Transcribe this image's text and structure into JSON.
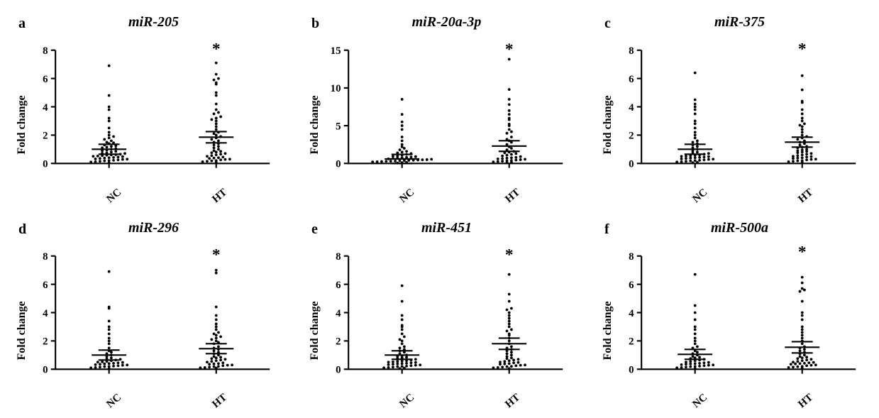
{
  "figure": {
    "background_color": "#ffffff",
    "text_color": "#000000",
    "font_family": "Times New Roman",
    "panel_label_fontsize": 20,
    "title_fontsize": 20,
    "ylabel_fontsize": 16,
    "tick_fontsize": 14,
    "xtick_fontsize": 15,
    "marker_color": "#000000",
    "marker_radius": 1.8,
    "axis_stroke": "#000000",
    "axis_width": 2,
    "tick_len": 6,
    "errorbar_width": 2,
    "errorbar_cap": 14,
    "mean_bar_width": 46,
    "xtick_rotation_deg": -40,
    "ylabel": "Fold change",
    "categories": [
      "NC",
      "HT"
    ],
    "star_symbol": "*",
    "panels": [
      {
        "label": "a",
        "title": "miR-205",
        "ylim": [
          0,
          8
        ],
        "ytick_step": 2,
        "star_on": 1,
        "star_y": 7.7,
        "groups": [
          {
            "mean": 1.0,
            "sem": 0.35,
            "points": [
              0.05,
              0.1,
              0.12,
              0.15,
              0.18,
              0.2,
              0.22,
              0.25,
              0.28,
              0.3,
              0.32,
              0.35,
              0.38,
              0.4,
              0.42,
              0.45,
              0.48,
              0.5,
              0.52,
              0.55,
              0.58,
              0.6,
              0.62,
              0.65,
              0.7,
              0.72,
              0.75,
              0.8,
              0.85,
              0.9,
              0.95,
              1.0,
              1.05,
              1.1,
              1.15,
              1.2,
              1.25,
              1.3,
              1.4,
              1.45,
              1.5,
              1.6,
              1.7,
              1.8,
              1.9,
              2.0,
              2.2,
              2.5,
              3.0,
              3.2,
              3.8,
              4.0,
              4.8,
              6.9
            ]
          },
          {
            "mean": 1.85,
            "sem": 0.4,
            "points": [
              0.08,
              0.12,
              0.15,
              0.18,
              0.2,
              0.25,
              0.28,
              0.3,
              0.35,
              0.38,
              0.4,
              0.45,
              0.5,
              0.55,
              0.6,
              0.65,
              0.7,
              0.75,
              0.8,
              0.85,
              0.9,
              1.0,
              1.1,
              1.2,
              1.3,
              1.4,
              1.5,
              1.6,
              1.7,
              1.8,
              1.9,
              2.0,
              2.1,
              2.2,
              2.4,
              2.6,
              2.8,
              3.0,
              3.1,
              3.2,
              3.3,
              3.5,
              3.6,
              3.8,
              4.2,
              4.8,
              5.0,
              5.6,
              5.7,
              5.9,
              6.0,
              6.3,
              7.1
            ]
          }
        ]
      },
      {
        "label": "b",
        "title": "miR-20a-3p",
        "ylim": [
          0,
          15
        ],
        "ytick_step": 5,
        "star_on": 1,
        "star_y": 14.4,
        "groups": [
          {
            "mean": 0.6,
            "sem": 0.6,
            "points": [
              0.05,
              0.1,
              0.15,
              0.2,
              0.22,
              0.25,
              0.28,
              0.3,
              0.32,
              0.35,
              0.38,
              0.4,
              0.42,
              0.45,
              0.48,
              0.5,
              0.55,
              0.6,
              0.65,
              0.7,
              0.75,
              0.8,
              0.85,
              0.9,
              0.95,
              1.0,
              1.1,
              1.2,
              1.3,
              1.4,
              1.5,
              1.6,
              1.8,
              2.0,
              2.2,
              2.5,
              3.0,
              3.5,
              4.5,
              5.0,
              5.5,
              6.5,
              8.5
            ]
          },
          {
            "mean": 2.3,
            "sem": 0.7,
            "points": [
              0.1,
              0.15,
              0.2,
              0.25,
              0.3,
              0.35,
              0.4,
              0.45,
              0.5,
              0.55,
              0.6,
              0.65,
              0.7,
              0.75,
              0.8,
              0.9,
              1.0,
              1.1,
              1.2,
              1.3,
              1.4,
              1.5,
              1.6,
              1.8,
              2.0,
              2.2,
              2.5,
              2.8,
              3.0,
              3.2,
              3.5,
              4.0,
              4.2,
              4.5,
              5.0,
              5.2,
              5.8,
              6.0,
              6.5,
              7.0,
              7.8,
              8.5,
              9.8,
              13.8
            ]
          }
        ]
      },
      {
        "label": "c",
        "title": "miR-375",
        "ylim": [
          0,
          8
        ],
        "ytick_step": 2,
        "star_on": 1,
        "star_y": 7.7,
        "groups": [
          {
            "mean": 1.0,
            "sem": 0.35,
            "points": [
              0.05,
              0.08,
              0.1,
              0.12,
              0.15,
              0.18,
              0.2,
              0.22,
              0.25,
              0.28,
              0.3,
              0.32,
              0.35,
              0.38,
              0.4,
              0.42,
              0.45,
              0.48,
              0.5,
              0.52,
              0.55,
              0.58,
              0.6,
              0.65,
              0.7,
              0.75,
              0.8,
              0.9,
              1.0,
              1.1,
              1.2,
              1.3,
              1.4,
              1.5,
              1.6,
              1.8,
              2.0,
              2.2,
              2.5,
              2.8,
              3.0,
              3.5,
              3.8,
              4.0,
              4.2,
              4.5,
              6.4
            ]
          },
          {
            "mean": 1.5,
            "sem": 0.35,
            "points": [
              0.08,
              0.12,
              0.15,
              0.18,
              0.2,
              0.25,
              0.28,
              0.3,
              0.35,
              0.38,
              0.4,
              0.45,
              0.48,
              0.5,
              0.55,
              0.6,
              0.65,
              0.7,
              0.75,
              0.8,
              0.85,
              0.9,
              0.95,
              1.0,
              1.1,
              1.15,
              1.2,
              1.3,
              1.4,
              1.5,
              1.6,
              1.7,
              1.8,
              1.9,
              2.0,
              2.2,
              2.4,
              2.6,
              2.7,
              2.8,
              3.0,
              3.2,
              3.5,
              3.8,
              4.3,
              4.4,
              5.2,
              6.2
            ]
          }
        ]
      },
      {
        "label": "d",
        "title": "miR-296",
        "ylim": [
          0,
          8
        ],
        "ytick_step": 2,
        "star_on": 1,
        "star_y": 7.7,
        "groups": [
          {
            "mean": 1.0,
            "sem": 0.35,
            "points": [
              0.05,
              0.1,
              0.12,
              0.15,
              0.18,
              0.2,
              0.22,
              0.25,
              0.28,
              0.3,
              0.32,
              0.35,
              0.38,
              0.4,
              0.42,
              0.45,
              0.48,
              0.5,
              0.52,
              0.55,
              0.6,
              0.65,
              0.7,
              0.75,
              0.8,
              0.9,
              1.0,
              1.1,
              1.2,
              1.3,
              1.5,
              1.8,
              2.0,
              2.2,
              2.5,
              2.8,
              3.0,
              3.4,
              4.3,
              4.4,
              6.9
            ]
          },
          {
            "mean": 1.45,
            "sem": 0.35,
            "points": [
              0.08,
              0.1,
              0.12,
              0.15,
              0.18,
              0.2,
              0.25,
              0.28,
              0.3,
              0.35,
              0.38,
              0.4,
              0.45,
              0.5,
              0.55,
              0.6,
              0.65,
              0.7,
              0.75,
              0.8,
              0.85,
              0.9,
              1.0,
              1.1,
              1.2,
              1.3,
              1.4,
              1.5,
              1.6,
              1.8,
              1.9,
              2.0,
              2.1,
              2.2,
              2.3,
              2.4,
              2.5,
              2.6,
              2.8,
              3.0,
              3.2,
              3.5,
              3.8,
              4.4,
              6.8,
              7.0
            ]
          }
        ]
      },
      {
        "label": "e",
        "title": "miR-451",
        "ylim": [
          0,
          8
        ],
        "ytick_step": 2,
        "star_on": 1,
        "star_y": 7.7,
        "groups": [
          {
            "mean": 1.0,
            "sem": 0.3,
            "points": [
              0.05,
              0.08,
              0.1,
              0.12,
              0.15,
              0.18,
              0.2,
              0.22,
              0.25,
              0.28,
              0.3,
              0.32,
              0.35,
              0.38,
              0.4,
              0.42,
              0.45,
              0.48,
              0.5,
              0.52,
              0.55,
              0.58,
              0.6,
              0.65,
              0.7,
              0.75,
              0.8,
              0.85,
              0.9,
              0.95,
              1.0,
              1.1,
              1.2,
              1.3,
              1.4,
              1.5,
              1.6,
              1.8,
              2.0,
              2.1,
              2.3,
              2.5,
              2.8,
              3.0,
              3.1,
              3.5,
              3.8,
              4.8,
              5.9
            ]
          },
          {
            "mean": 1.8,
            "sem": 0.4,
            "points": [
              0.05,
              0.1,
              0.12,
              0.15,
              0.18,
              0.2,
              0.25,
              0.28,
              0.3,
              0.35,
              0.38,
              0.4,
              0.45,
              0.48,
              0.5,
              0.55,
              0.6,
              0.65,
              0.7,
              0.75,
              0.8,
              0.9,
              1.0,
              1.1,
              1.2,
              1.3,
              1.4,
              1.5,
              1.6,
              1.8,
              2.0,
              2.2,
              2.4,
              2.5,
              2.7,
              2.8,
              3.0,
              3.2,
              3.4,
              3.6,
              3.8,
              4.0,
              4.2,
              4.3,
              4.8,
              5.3,
              6.7
            ]
          }
        ]
      },
      {
        "label": "f",
        "title": "miR-500a",
        "ylim": [
          0,
          8
        ],
        "ytick_step": 2,
        "star_on": 1,
        "star_y": 7.9,
        "groups": [
          {
            "mean": 1.05,
            "sem": 0.35,
            "points": [
              0.05,
              0.1,
              0.12,
              0.15,
              0.18,
              0.2,
              0.22,
              0.25,
              0.28,
              0.3,
              0.32,
              0.35,
              0.38,
              0.4,
              0.42,
              0.45,
              0.48,
              0.5,
              0.55,
              0.6,
              0.65,
              0.7,
              0.75,
              0.8,
              0.85,
              0.9,
              1.0,
              1.1,
              1.2,
              1.3,
              1.5,
              1.6,
              1.8,
              2.0,
              2.2,
              2.5,
              2.8,
              3.0,
              3.5,
              4.0,
              4.5,
              6.7
            ]
          },
          {
            "mean": 1.55,
            "sem": 0.4,
            "points": [
              0.08,
              0.12,
              0.15,
              0.18,
              0.2,
              0.25,
              0.28,
              0.3,
              0.35,
              0.38,
              0.4,
              0.42,
              0.45,
              0.48,
              0.5,
              0.55,
              0.6,
              0.65,
              0.7,
              0.75,
              0.8,
              0.85,
              0.9,
              1.0,
              1.1,
              1.2,
              1.3,
              1.4,
              1.5,
              1.6,
              1.8,
              2.0,
              2.2,
              2.4,
              2.6,
              2.8,
              3.0,
              3.5,
              3.8,
              4.0,
              4.8,
              5.5,
              5.6,
              5.7,
              6.1,
              6.5
            ]
          }
        ]
      }
    ]
  }
}
